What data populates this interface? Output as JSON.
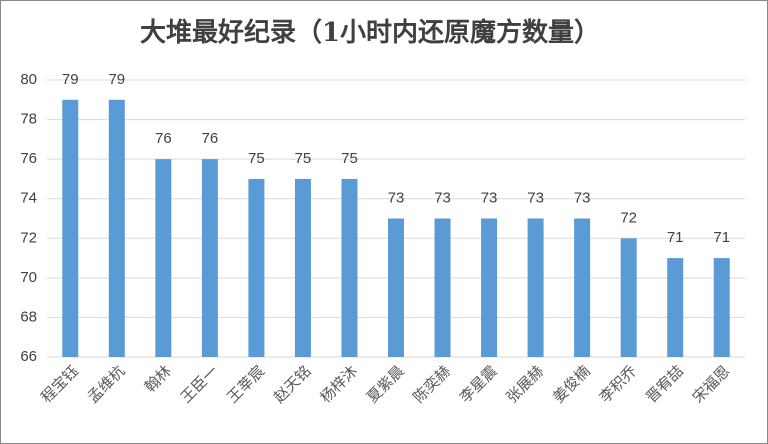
{
  "chart_data": {
    "type": "bar",
    "title": "大堆最好纪录（1小时内还原魔方数量）",
    "categories": [
      "程宝钰",
      "孟维杭",
      "翰林",
      "王臣一",
      "王莘宸",
      "赵天铭",
      "杨梓沐",
      "夏紫晨",
      "陈奕赫",
      "李星震",
      "张展赫",
      "姜俊楠",
      "李积乔",
      "晋宥喆",
      "宋福恩"
    ],
    "values": [
      79,
      79,
      76,
      76,
      75,
      75,
      75,
      73,
      73,
      73,
      73,
      73,
      72,
      71,
      71
    ],
    "color": "#5b9bd5",
    "ylim": [
      66,
      80
    ],
    "yticks": [
      66,
      68,
      70,
      72,
      74,
      76,
      78,
      80
    ],
    "grid": true
  }
}
